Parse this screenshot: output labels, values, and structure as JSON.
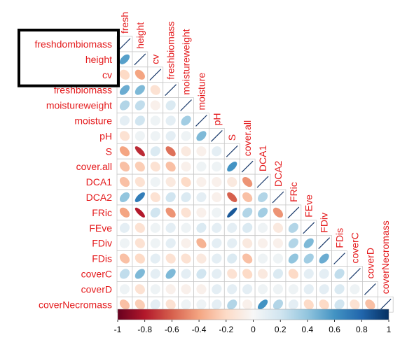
{
  "chart_data": {
    "type": "heatmap",
    "subtype": "correlation-ellipse-lower-triangle",
    "variables": [
      "freshdombiomass",
      "height",
      "cv",
      "freshbiomass",
      "moistureweight",
      "moisture",
      "pH",
      "S",
      "cover.all",
      "DCA1",
      "DCA2",
      "FRic",
      "FEve",
      "FDiv",
      "FDis",
      "coverC",
      "coverD",
      "coverNecromass"
    ],
    "column_labels": [
      "fresh",
      "height",
      "cv",
      "freshbiomass",
      "moistureweight",
      "moisture",
      "pH",
      "S",
      "cover.all",
      "DCA1",
      "DCA2",
      "FRic",
      "FEve",
      "FDiv",
      "FDis",
      "coverC",
      "coverD",
      "coverNecromass"
    ],
    "matrix_lower": [
      [
        1
      ],
      [
        0.55,
        1
      ],
      [
        -0.2,
        -0.4,
        1
      ],
      [
        0.5,
        0.45,
        -0.15,
        1
      ],
      [
        0.3,
        0.25,
        -0.05,
        0.15,
        1
      ],
      [
        0.1,
        0.2,
        0.05,
        0.1,
        0.35,
        1
      ],
      [
        -0.15,
        0.05,
        0.05,
        0.1,
        0.05,
        0.45,
        1
      ],
      [
        -0.4,
        -0.75,
        0.15,
        -0.55,
        -0.1,
        -0.05,
        0.1,
        1
      ],
      [
        -0.3,
        -0.25,
        -0.15,
        -0.3,
        -0.05,
        0.05,
        0.05,
        0.6,
        1
      ],
      [
        -0.3,
        -0.15,
        0.05,
        -0.1,
        -0.2,
        -0.05,
        -0.05,
        -0.1,
        -0.45,
        1
      ],
      [
        0.4,
        0.7,
        -0.15,
        0.2,
        0.15,
        0.1,
        -0.05,
        -0.6,
        -0.3,
        0.3,
        1
      ],
      [
        -0.4,
        -0.8,
        0.2,
        -0.45,
        -0.15,
        -0.05,
        0.05,
        0.85,
        0.3,
        0.35,
        -0.45,
        1
      ],
      [
        0.1,
        -0.15,
        0.05,
        0.1,
        0.05,
        0.15,
        0.1,
        0.1,
        0.15,
        0.05,
        -0.1,
        0.3,
        1
      ],
      [
        0.05,
        -0.15,
        0.05,
        0.1,
        -0.05,
        -0.35,
        0.1,
        0.1,
        -0.1,
        -0.05,
        -0.05,
        0.3,
        0.45,
        1
      ],
      [
        -0.3,
        -0.2,
        0.1,
        -0.15,
        -0.15,
        -0.1,
        0.1,
        0.15,
        -0.3,
        0.05,
        0.05,
        0.4,
        0.35,
        0.5,
        1
      ],
      [
        0.25,
        0.45,
        0.1,
        0.45,
        0.1,
        0.2,
        0.1,
        -0.15,
        -0.2,
        -0.1,
        0.15,
        -0.2,
        0.1,
        0.1,
        0.25,
        1
      ],
      [
        0.05,
        -0.15,
        0.05,
        -0.05,
        -0.05,
        -0.05,
        0.1,
        0.1,
        0.1,
        0.05,
        0.05,
        0.05,
        0.1,
        0.1,
        0.15,
        0.05,
        1
      ],
      [
        -0.3,
        -0.25,
        0.1,
        -0.15,
        0.05,
        0.05,
        0.1,
        0.3,
        -0.05,
        0.6,
        0.3,
        0.1,
        -0.2,
        -0.2,
        0.2,
        -0.15,
        -0.3,
        1
      ]
    ],
    "colorbar": {
      "range": [
        -1,
        1
      ],
      "ticks": [
        "-1",
        "-0.8",
        "-0.6",
        "-0.4",
        "-0.2",
        "0",
        "0.2",
        "0.4",
        "0.6",
        "0.8",
        "1"
      ]
    },
    "highlight_box_rows": [
      "freshdombiomass",
      "height",
      "cv"
    ],
    "colors": {
      "negative": "#67001f",
      "zero": "#f7f7f7",
      "positive": "#053061",
      "label": "#e41a1c",
      "grid": "#c8c8c8",
      "highlight_box": "#000000"
    }
  }
}
